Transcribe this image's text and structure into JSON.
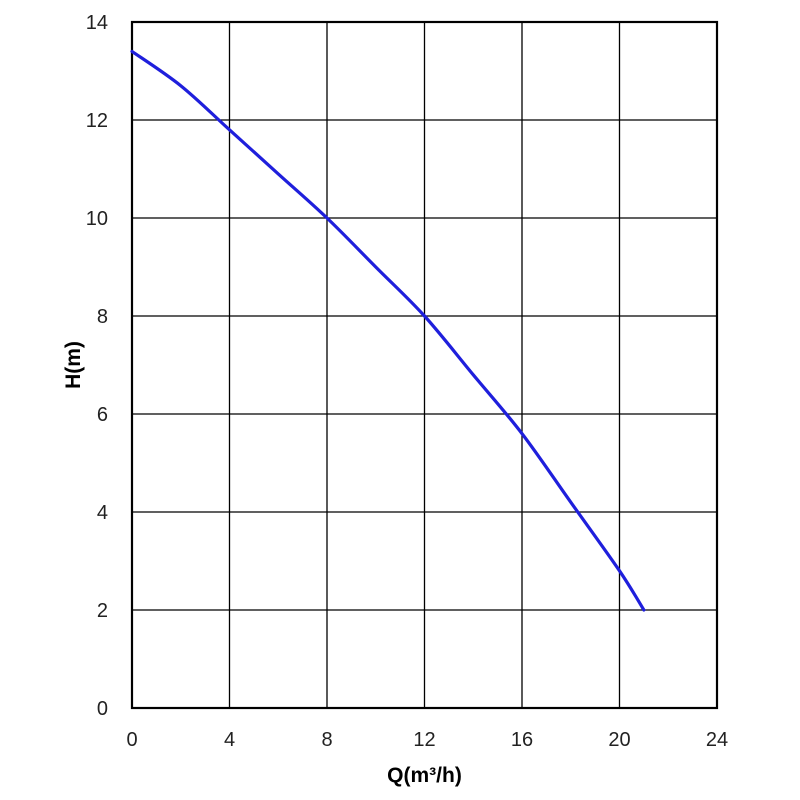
{
  "chart_data": {
    "type": "line",
    "xlabel": "Q(m³/h)",
    "ylabel": "H(m)",
    "xlim": [
      0,
      24
    ],
    "ylim": [
      0,
      14
    ],
    "x_ticks": [
      "0",
      "4",
      "8",
      "12",
      "16",
      "20",
      "24"
    ],
    "y_ticks": [
      "0",
      "2",
      "4",
      "6",
      "8",
      "10",
      "12",
      "14"
    ],
    "grid": true,
    "colors": {
      "series": "#1f1fdc",
      "grid": "#000000",
      "background": "#ffffff"
    },
    "series": [
      {
        "x": [
          0,
          2,
          4,
          6,
          8,
          10,
          12,
          14,
          16,
          18,
          20,
          21
        ],
        "y": [
          13.4,
          12.7,
          11.8,
          10.9,
          10.0,
          9.0,
          8.0,
          6.8,
          5.6,
          4.2,
          2.8,
          2.0
        ]
      }
    ]
  }
}
